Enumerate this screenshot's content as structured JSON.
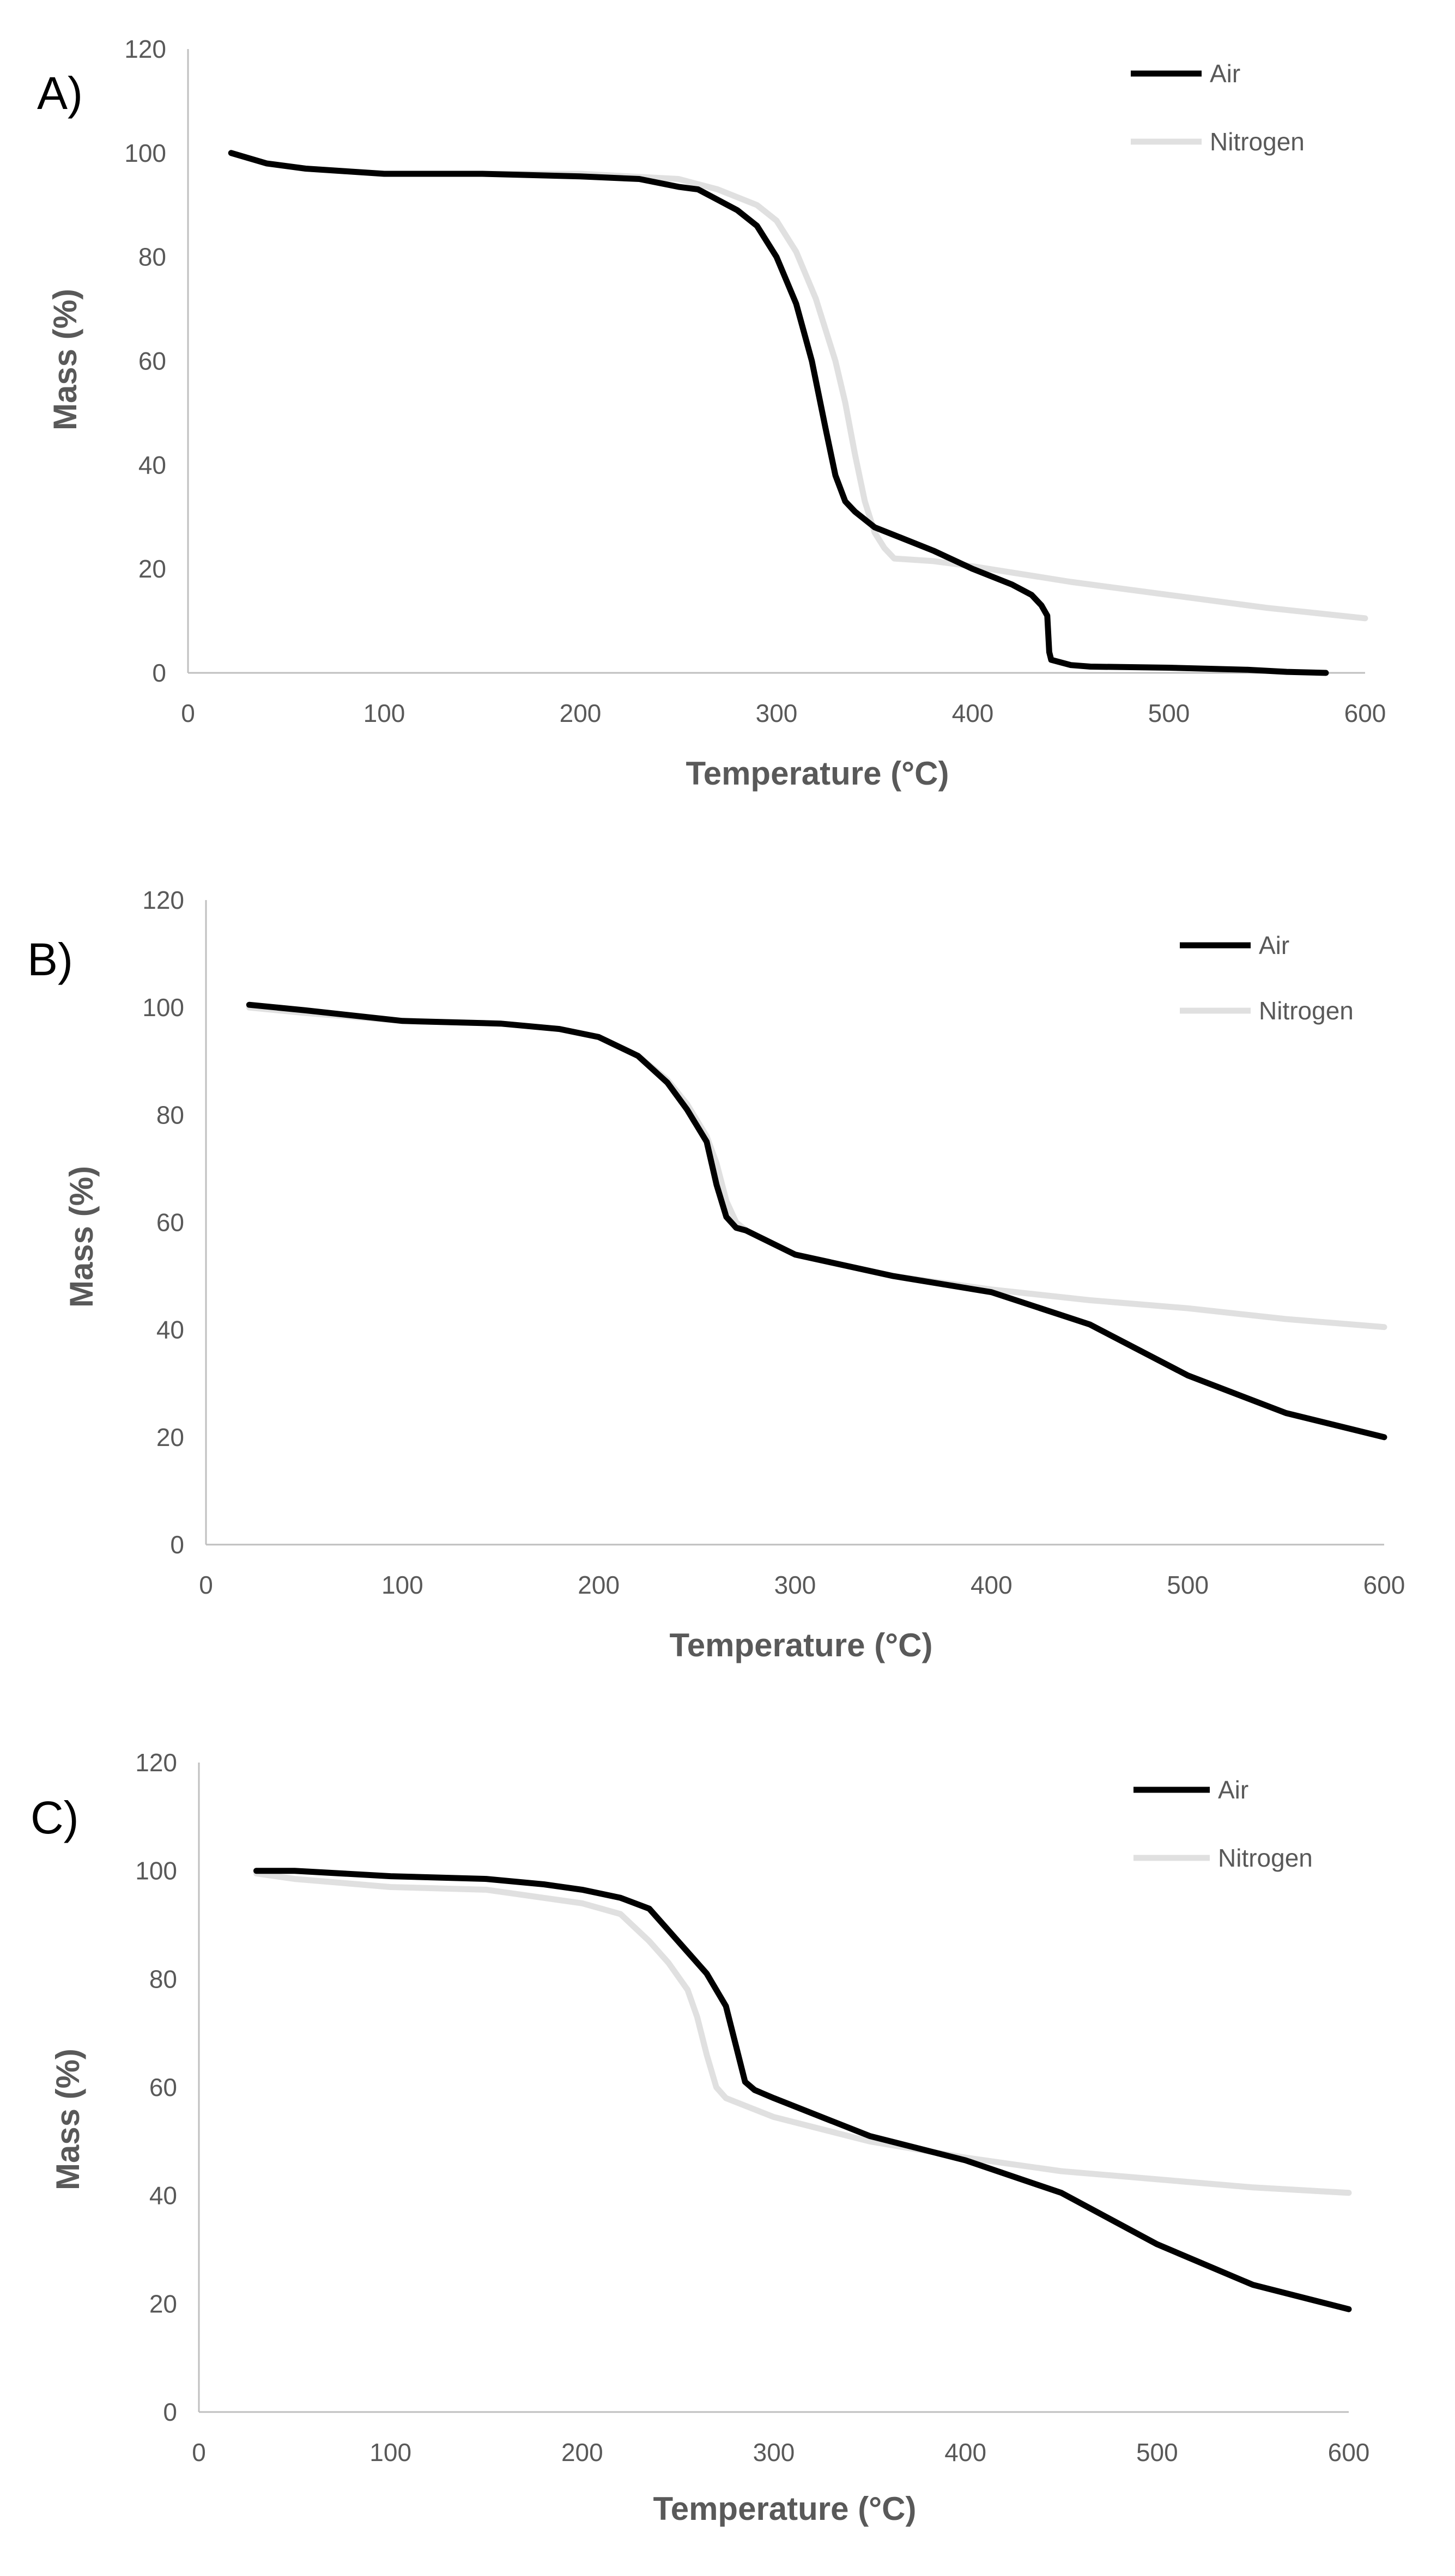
{
  "chart_data": [
    {
      "type": "line",
      "panel_label": "A)",
      "xlabel": "Temperature (°C)",
      "ylabel": "Mass (%)",
      "xlim": [
        0,
        600
      ],
      "ylim": [
        0,
        120
      ],
      "xticks": [
        "0",
        "100",
        "200",
        "300",
        "400",
        "500",
        "600"
      ],
      "yticks": [
        "0",
        "20",
        "40",
        "60",
        "80",
        "100",
        "120"
      ],
      "grid": false,
      "legend_position": "top-right",
      "series": [
        {
          "name": "Air",
          "color": "#000000",
          "x": [
            22,
            40,
            60,
            80,
            100,
            150,
            200,
            230,
            250,
            260,
            270,
            280,
            290,
            300,
            310,
            318,
            325,
            330,
            335,
            340,
            350,
            360,
            380,
            400,
            420,
            430,
            435,
            438,
            439,
            440,
            450,
            460,
            500,
            540,
            560,
            580
          ],
          "y": [
            100,
            98,
            97,
            96.5,
            96,
            96,
            95.5,
            95,
            93.5,
            93,
            91,
            89,
            86,
            80,
            71,
            60,
            47,
            38,
            33,
            31,
            28,
            26.5,
            23.5,
            20,
            17,
            15,
            13,
            11,
            4,
            2.5,
            1.5,
            1.2,
            1,
            0.6,
            0.2,
            0
          ]
        },
        {
          "name": "Nitrogen",
          "color": "#e0e0e0",
          "x": [
            22,
            40,
            60,
            80,
            100,
            150,
            200,
            250,
            270,
            290,
            300,
            310,
            320,
            330,
            335,
            340,
            345,
            350,
            355,
            360,
            380,
            400,
            450,
            500,
            550,
            600
          ],
          "y": [
            100,
            98,
            97,
            96.5,
            96,
            96,
            96,
            95,
            93,
            90,
            87,
            81,
            72,
            60,
            52,
            42,
            33,
            27,
            24,
            22,
            21.5,
            20.5,
            17.5,
            15,
            12.5,
            10.5
          ]
        }
      ]
    },
    {
      "type": "line",
      "panel_label": "B)",
      "xlabel": "Temperature (°C)",
      "ylabel": "Mass (%)",
      "xlim": [
        0,
        600
      ],
      "ylim": [
        0,
        120
      ],
      "xticks": [
        "0",
        "100",
        "200",
        "300",
        "400",
        "500",
        "600"
      ],
      "yticks": [
        "0",
        "20",
        "40",
        "60",
        "80",
        "100",
        "120"
      ],
      "grid": false,
      "legend_position": "top-right",
      "series": [
        {
          "name": "Air",
          "color": "#000000",
          "x": [
            22,
            50,
            100,
            150,
            180,
            200,
            220,
            235,
            245,
            255,
            260,
            265,
            270,
            275,
            300,
            350,
            400,
            450,
            500,
            550,
            600
          ],
          "y": [
            100.5,
            99.5,
            97.5,
            97,
            96,
            94.5,
            91,
            86,
            81,
            75,
            67,
            61,
            59,
            58.5,
            54,
            50,
            47,
            41,
            31.5,
            24.5,
            20
          ]
        },
        {
          "name": "Nitrogen",
          "color": "#e0e0e0",
          "x": [
            22,
            50,
            100,
            150,
            180,
            200,
            220,
            235,
            245,
            255,
            260,
            265,
            270,
            275,
            300,
            350,
            400,
            450,
            500,
            550,
            600
          ],
          "y": [
            100,
            99,
            97.5,
            97,
            96,
            94.5,
            91,
            86.5,
            82,
            76,
            71,
            64,
            60,
            58.5,
            54,
            50,
            47.5,
            45.5,
            44,
            42,
            40.5
          ]
        }
      ]
    },
    {
      "type": "line",
      "panel_label": "C)",
      "xlabel": "Temperature (°C)",
      "ylabel": "Mass (%)",
      "xlim": [
        0,
        600
      ],
      "ylim": [
        0,
        120
      ],
      "xticks": [
        "0",
        "100",
        "200",
        "300",
        "400",
        "500",
        "600"
      ],
      "yticks": [
        "0",
        "20",
        "40",
        "60",
        "80",
        "100",
        "120"
      ],
      "grid": false,
      "legend_position": "top-right",
      "series": [
        {
          "name": "Air",
          "color": "#000000",
          "x": [
            30,
            50,
            100,
            150,
            180,
            200,
            220,
            235,
            245,
            255,
            265,
            275,
            280,
            285,
            290,
            300,
            350,
            400,
            450,
            500,
            550,
            600
          ],
          "y": [
            100,
            100,
            99,
            98.5,
            97.5,
            96.5,
            95,
            93,
            89,
            85,
            81,
            75,
            68,
            61,
            59.5,
            58,
            51,
            46.5,
            40.5,
            31,
            23.5,
            19
          ]
        },
        {
          "name": "Nitrogen",
          "color": "#e0e0e0",
          "x": [
            30,
            50,
            100,
            150,
            200,
            220,
            235,
            245,
            255,
            260,
            265,
            270,
            275,
            300,
            350,
            400,
            450,
            500,
            550,
            600
          ],
          "y": [
            99.5,
            98.5,
            97,
            96.5,
            94,
            92,
            87,
            83,
            78,
            73,
            66,
            60,
            58,
            54.5,
            50,
            47,
            44.5,
            43,
            41.5,
            40.5
          ]
        }
      ]
    }
  ]
}
